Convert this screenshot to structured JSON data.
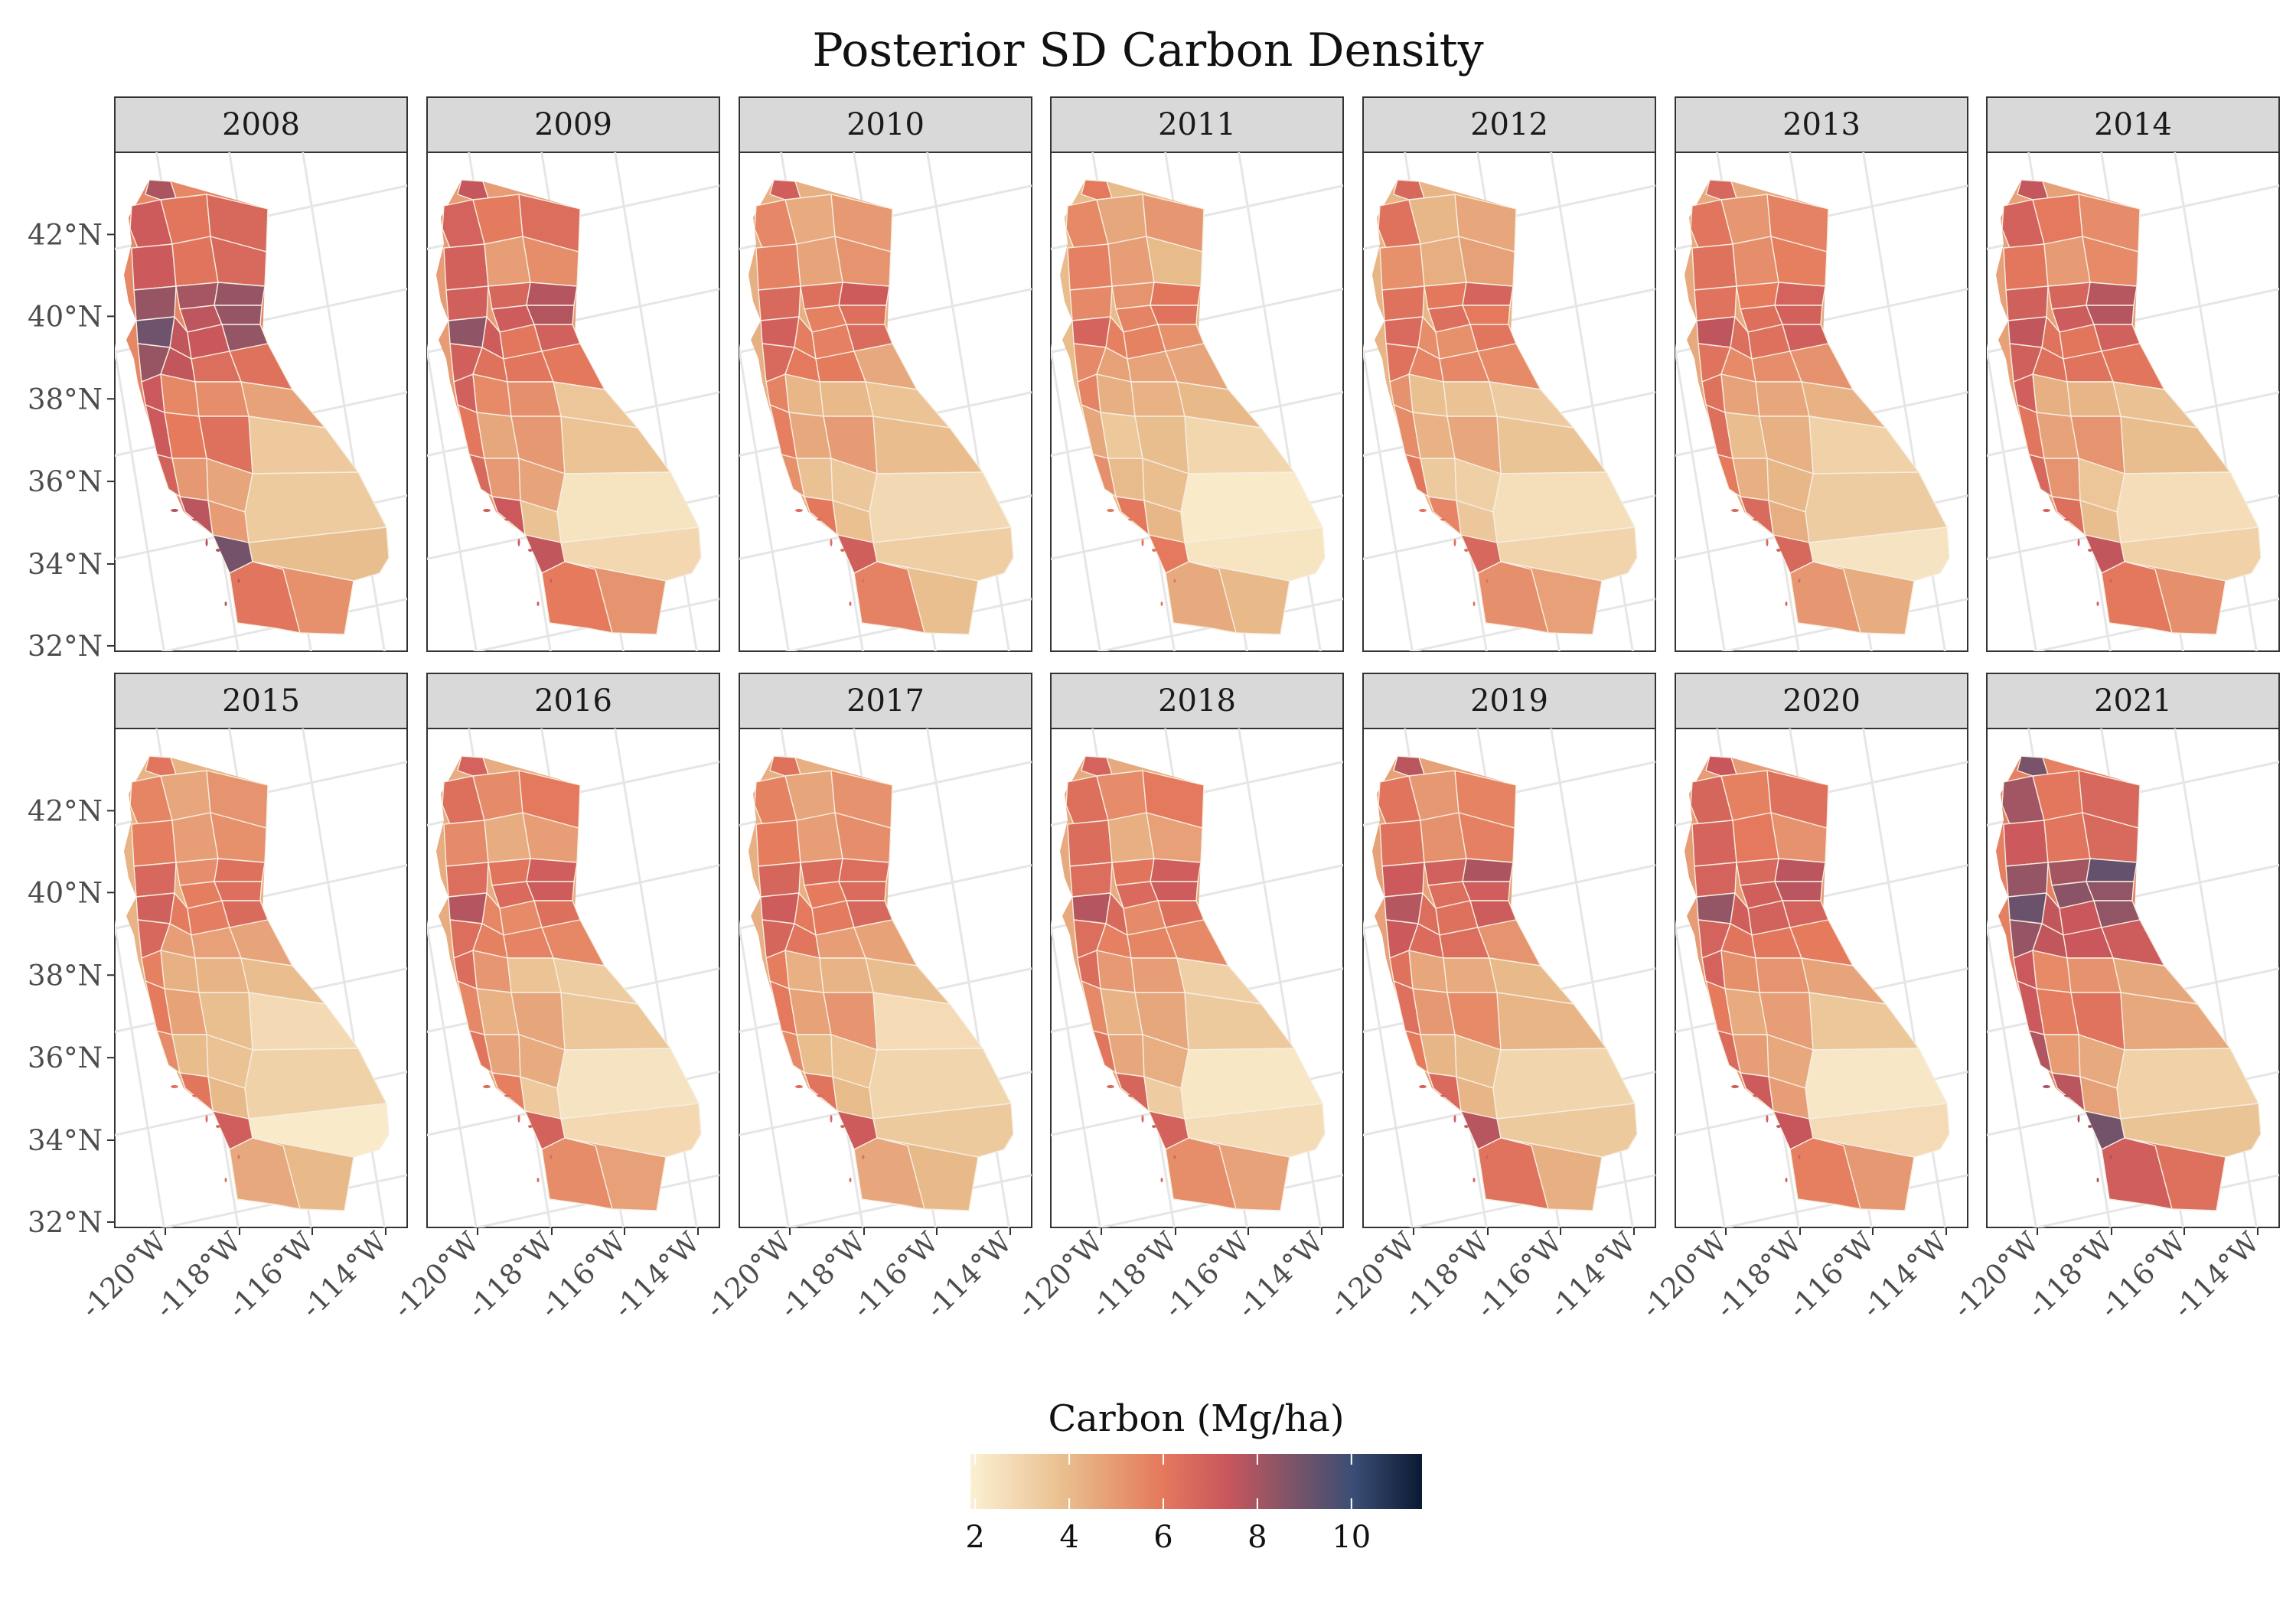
{
  "figure": {
    "title": "Posterior SD Carbon Density"
  },
  "panels": [
    {
      "label": "2008",
      "level": 1.0
    },
    {
      "label": "2009",
      "level": 0.82
    },
    {
      "label": "2010",
      "level": 0.65
    },
    {
      "label": "2011",
      "level": 0.55
    },
    {
      "label": "2012",
      "level": 0.6
    },
    {
      "label": "2013",
      "level": 0.7
    },
    {
      "label": "2014",
      "level": 0.78
    },
    {
      "label": "2015",
      "level": 0.62
    },
    {
      "label": "2016",
      "level": 0.68
    },
    {
      "label": "2017",
      "level": 0.66
    },
    {
      "label": "2018",
      "level": 0.7
    },
    {
      "label": "2019",
      "level": 0.78
    },
    {
      "label": "2020",
      "level": 0.82
    },
    {
      "label": "2021",
      "level": 1.05
    }
  ],
  "axes": {
    "lat_ticks": [
      "42°N",
      "40°N",
      "38°N",
      "36°N",
      "34°N",
      "32°N"
    ],
    "lon_ticks": [
      "-120°W",
      "-118°W",
      "-116°W",
      "-114°W"
    ]
  },
  "legend": {
    "title": "Carbon (Mg/ha)",
    "ticks": [
      "2",
      "4",
      "6",
      "8",
      "10"
    ],
    "range": [
      1.9,
      11.5
    ],
    "tick_values": [
      2,
      4,
      6,
      8,
      10
    ],
    "colors": [
      "#fbf0d2",
      "#e8bb8a",
      "#e57a5d",
      "#c9565c",
      "#7e5468",
      "#3a4d75",
      "#0b1a33"
    ]
  }
}
